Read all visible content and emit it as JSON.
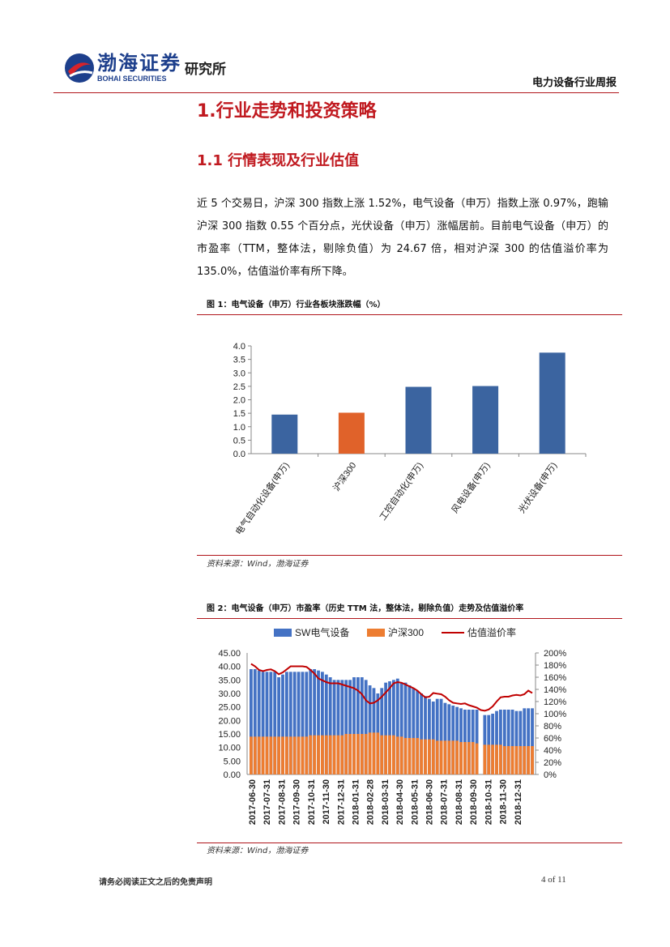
{
  "header": {
    "brand_cn": "渤海证券",
    "brand_en": "BOHAI SECURITIES",
    "institute": "研究所",
    "report_type": "电力设备行业周报"
  },
  "section": {
    "h1": "1.行业走势和投资策略",
    "h2": "1.1 行情表现及行业估值",
    "paragraph": "近 5 个交易日，沪深 300 指数上涨 1.52%，电气设备（申万）指数上涨 0.97%，跑输沪深 300 指数 0.55 个百分点，光伏设备（申万）涨幅居前。目前电气设备（申万）的市盈率（TTM，整体法，剔除负值）为 24.67 倍，相对沪深 300 的估值溢价率为 135.0%，估值溢价率有所下降。"
  },
  "figure1": {
    "title": "图 1：电气设备（申万）行业各板块涨跌幅（%）",
    "source": "资料来源：Wind，渤海证券"
  },
  "figure2": {
    "title": "图 2：电气设备（申万）市盈率（历史 TTM 法，整体法，剔除负值）走势及估值溢价率",
    "source": "资料来源：Wind，渤海证券"
  },
  "footer": {
    "disclaimer": "请务必阅读正文之后的免责声明",
    "page": "4 of 11"
  },
  "colors": {
    "accent_red": "#c0191f",
    "bar_blue": "#3b64a0",
    "bar_orange": "#e0622a",
    "pe_blue": "#4472c4",
    "hs300_orange": "#ed7d31",
    "premium_red": "#c00000"
  },
  "chart_data": [
    {
      "type": "bar",
      "categories": [
        "电气自动化设备(申万)",
        "沪深300",
        "工控自动化(申万)",
        "风电设备(申万)",
        "光伏设备(申万)"
      ],
      "values": [
        1.45,
        1.52,
        2.48,
        2.51,
        3.75
      ],
      "highlight_index": 1,
      "ylim": [
        0,
        4.0
      ],
      "yticks": [
        "0.0",
        "0.5",
        "1.0",
        "1.5",
        "2.0",
        "2.5",
        "3.0",
        "3.5",
        "4.0"
      ],
      "grid": false,
      "legend": "none"
    },
    {
      "type": "bar",
      "series": [
        {
          "name": "SW电气设备",
          "type": "bar",
          "axis": "left",
          "values": [
            39,
            39,
            38.5,
            38,
            38,
            38,
            38,
            36,
            37,
            38,
            38,
            38,
            38,
            38,
            38,
            39,
            39,
            38.5,
            38,
            37,
            36,
            35,
            35,
            35,
            35,
            35,
            36,
            36,
            36,
            35,
            33,
            32,
            30,
            32,
            34,
            34.5,
            35,
            35.5,
            34,
            34,
            33,
            32,
            31,
            30,
            29,
            28,
            27,
            28,
            28,
            26.5,
            26,
            25.5,
            25,
            24.5,
            24,
            24,
            24,
            24,
            0,
            22,
            22,
            22.5,
            23.5,
            24,
            24,
            24,
            24,
            23.5,
            23.5,
            24.5,
            24.5,
            24.5
          ]
        },
        {
          "name": "沪深300",
          "type": "bar",
          "axis": "left",
          "values": [
            14,
            14,
            14,
            14,
            14,
            14,
            14,
            14,
            14,
            14,
            14,
            14,
            14,
            14,
            14,
            14.5,
            14.5,
            14.5,
            14.5,
            14.5,
            14.5,
            14.5,
            14.5,
            14.5,
            15,
            15,
            15,
            15,
            15,
            15,
            15.5,
            15.5,
            15.5,
            14.5,
            14.5,
            14.5,
            14.5,
            14,
            14,
            13.5,
            13.5,
            13.5,
            13.5,
            13,
            13,
            13,
            13,
            12.5,
            12.5,
            12.5,
            12.5,
            12.5,
            12.5,
            12,
            12,
            12,
            12,
            11.5,
            0,
            11,
            11,
            11,
            11,
            11,
            10.5,
            10.5,
            10.5,
            10.5,
            10.5,
            10.5,
            10.5,
            10.5
          ]
        },
        {
          "name": "估值溢价率",
          "type": "line",
          "axis": "right",
          "values": [
            1.82,
            1.78,
            1.72,
            1.7,
            1.72,
            1.73,
            1.7,
            1.65,
            1.68,
            1.73,
            1.78,
            1.78,
            1.78,
            1.78,
            1.77,
            1.72,
            1.66,
            1.58,
            1.55,
            1.52,
            1.5,
            1.5,
            1.5,
            1.48,
            1.46,
            1.44,
            1.42,
            1.38,
            1.32,
            1.22,
            1.17,
            1.18,
            1.22,
            1.28,
            1.35,
            1.42,
            1.5,
            1.52,
            1.51,
            1.48,
            1.45,
            1.42,
            1.38,
            1.32,
            1.27,
            1.28,
            1.34,
            1.33,
            1.32,
            1.28,
            1.22,
            1.18,
            1.17,
            1.16,
            1.17,
            1.14,
            1.12,
            1.1,
            1.06,
            1.05,
            1.07,
            1.12,
            1.2,
            1.27,
            1.28,
            1.28,
            1.3,
            1.31,
            1.3,
            1.32,
            1.38,
            1.34
          ]
        }
      ],
      "x_tick_labels": [
        "2017-06-30",
        "2017-07-31",
        "2017-08-31",
        "2017-09-30",
        "2017-10-31",
        "2017-11-30",
        "2017-12-31",
        "2018-01-31",
        "2018-02-28",
        "2018-03-31",
        "2018-04-30",
        "2018-05-31",
        "2018-06-30",
        "2018-07-31",
        "2018-08-31",
        "2018-09-30",
        "2018-10-31",
        "2018-11-30",
        "2018-12-31"
      ],
      "ylim_left": [
        0,
        45
      ],
      "yticks_left": [
        "0.00",
        "5.00",
        "10.00",
        "15.00",
        "20.00",
        "25.00",
        "30.00",
        "35.00",
        "40.00",
        "45.00"
      ],
      "ylim_right": [
        0,
        2.0
      ],
      "yticks_right": [
        "0%",
        "20%",
        "40%",
        "60%",
        "80%",
        "100%",
        "120%",
        "140%",
        "160%",
        "180%",
        "200%"
      ],
      "legend": "top"
    }
  ]
}
